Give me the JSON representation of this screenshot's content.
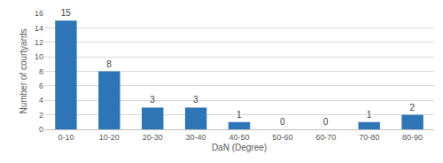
{
  "chart_data": {
    "type": "bar",
    "x_label": "DaN (Degree)",
    "y_label": "Number of courtyards",
    "categories": [
      "0-10",
      "10-20",
      "20-30",
      "30-40",
      "40-50",
      "50-60",
      "60-70",
      "70-80",
      "80-90"
    ],
    "values": [
      15,
      8,
      3,
      3,
      1,
      0,
      0,
      1,
      2
    ],
    "color": "#2e75b6",
    "ylim": [
      0,
      16
    ],
    "yticks": [
      0,
      2,
      4,
      6,
      8,
      10,
      12,
      14,
      16
    ],
    "grid": true,
    "data_labels": true
  }
}
